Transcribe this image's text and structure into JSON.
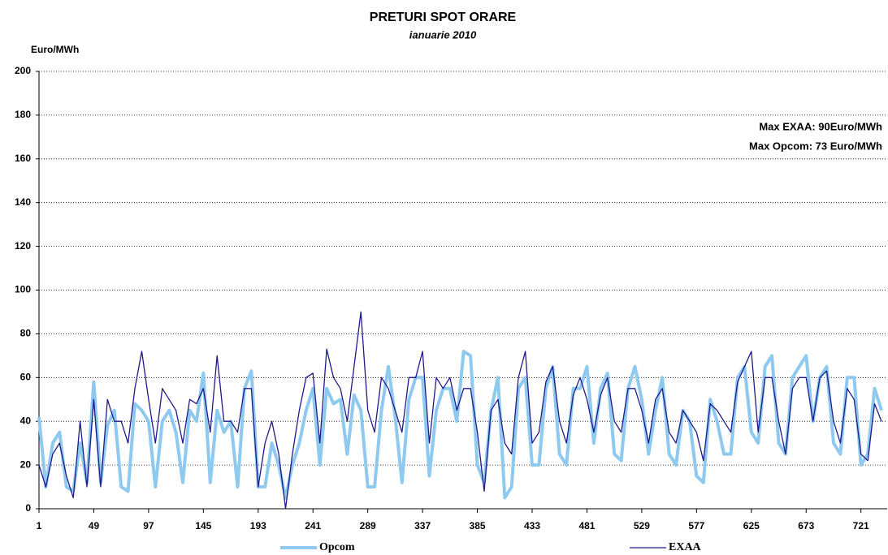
{
  "chart_data": {
    "type": "line",
    "title": "PRETURI SPOT ORARE",
    "subtitle": "ianuarie 2010",
    "y_label": "Euro/MWh",
    "annotations": [
      {
        "text": "Max EXAA:  90Euro/MWh",
        "color": "#1414b4"
      },
      {
        "text": "Max Opcom:  73 Euro/MWh",
        "color": "#33c3f0"
      }
    ],
    "x": [
      1,
      7,
      13,
      19,
      25,
      31,
      37,
      43,
      49,
      55,
      61,
      67,
      73,
      79,
      85,
      91,
      97,
      103,
      109,
      115,
      121,
      127,
      133,
      139,
      145,
      151,
      157,
      163,
      169,
      175,
      181,
      187,
      193,
      199,
      205,
      211,
      217,
      223,
      229,
      235,
      241,
      247,
      253,
      259,
      265,
      271,
      277,
      283,
      289,
      295,
      301,
      307,
      313,
      319,
      325,
      331,
      337,
      343,
      349,
      355,
      361,
      367,
      373,
      379,
      385,
      391,
      397,
      403,
      409,
      415,
      421,
      427,
      433,
      439,
      445,
      451,
      457,
      463,
      469,
      475,
      481,
      487,
      493,
      499,
      505,
      511,
      517,
      523,
      529,
      535,
      541,
      547,
      553,
      559,
      565,
      571,
      577,
      583,
      589,
      595,
      601,
      607,
      613,
      619,
      625,
      631,
      637,
      643,
      649,
      655,
      661,
      667,
      673,
      679,
      685,
      691,
      697,
      703,
      709,
      715,
      721,
      727,
      733,
      739
    ],
    "xlim": [
      1,
      744
    ],
    "xticks": [
      1,
      49,
      97,
      145,
      193,
      241,
      289,
      337,
      385,
      433,
      481,
      529,
      577,
      625,
      673,
      721
    ],
    "ylim": [
      0,
      200
    ],
    "yticks": [
      0,
      20,
      40,
      60,
      80,
      100,
      120,
      140,
      160,
      180,
      200
    ],
    "grid": true,
    "series": [
      {
        "name": "Opcom",
        "color": "#8ec9f0",
        "values": [
          42,
          10,
          30,
          35,
          10,
          8,
          30,
          12,
          58,
          12,
          38,
          45,
          10,
          8,
          48,
          45,
          40,
          10,
          40,
          45,
          35,
          12,
          45,
          40,
          62,
          12,
          45,
          35,
          40,
          10,
          55,
          63,
          10,
          10,
          30,
          20,
          5,
          20,
          30,
          45,
          55,
          20,
          55,
          48,
          50,
          25,
          52,
          45,
          10,
          10,
          45,
          65,
          42,
          12,
          50,
          60,
          60,
          15,
          45,
          55,
          55,
          40,
          72,
          70,
          20,
          12,
          45,
          60,
          5,
          10,
          55,
          60,
          20,
          20,
          55,
          65,
          25,
          20,
          55,
          55,
          65,
          30,
          55,
          62,
          25,
          22,
          55,
          65,
          50,
          25,
          45,
          60,
          25,
          20,
          45,
          40,
          15,
          12,
          50,
          40,
          25,
          25,
          60,
          65,
          35,
          30,
          65,
          70,
          30,
          25,
          60,
          65,
          70,
          40,
          60,
          65,
          30,
          25,
          60,
          60,
          20,
          25,
          55,
          45
        ]
      },
      {
        "name": "EXAA",
        "color": "#1f1a8a",
        "values": [
          20,
          10,
          25,
          30,
          15,
          5,
          40,
          10,
          50,
          10,
          50,
          40,
          40,
          30,
          55,
          72,
          50,
          30,
          55,
          50,
          45,
          30,
          50,
          48,
          55,
          35,
          70,
          40,
          40,
          35,
          55,
          55,
          10,
          30,
          40,
          25,
          0,
          25,
          45,
          60,
          62,
          30,
          73,
          60,
          55,
          40,
          65,
          90,
          45,
          35,
          60,
          55,
          45,
          35,
          60,
          60,
          72,
          30,
          60,
          55,
          60,
          45,
          55,
          55,
          35,
          8,
          45,
          50,
          30,
          25,
          60,
          72,
          30,
          35,
          58,
          65,
          40,
          30,
          52,
          60,
          50,
          35,
          52,
          60,
          40,
          35,
          55,
          55,
          45,
          30,
          50,
          55,
          35,
          30,
          45,
          40,
          35,
          22,
          48,
          45,
          40,
          35,
          58,
          65,
          72,
          35,
          60,
          60,
          40,
          25,
          55,
          60,
          60,
          40,
          60,
          63,
          40,
          30,
          55,
          50,
          25,
          22,
          48,
          40
        ]
      }
    ]
  }
}
